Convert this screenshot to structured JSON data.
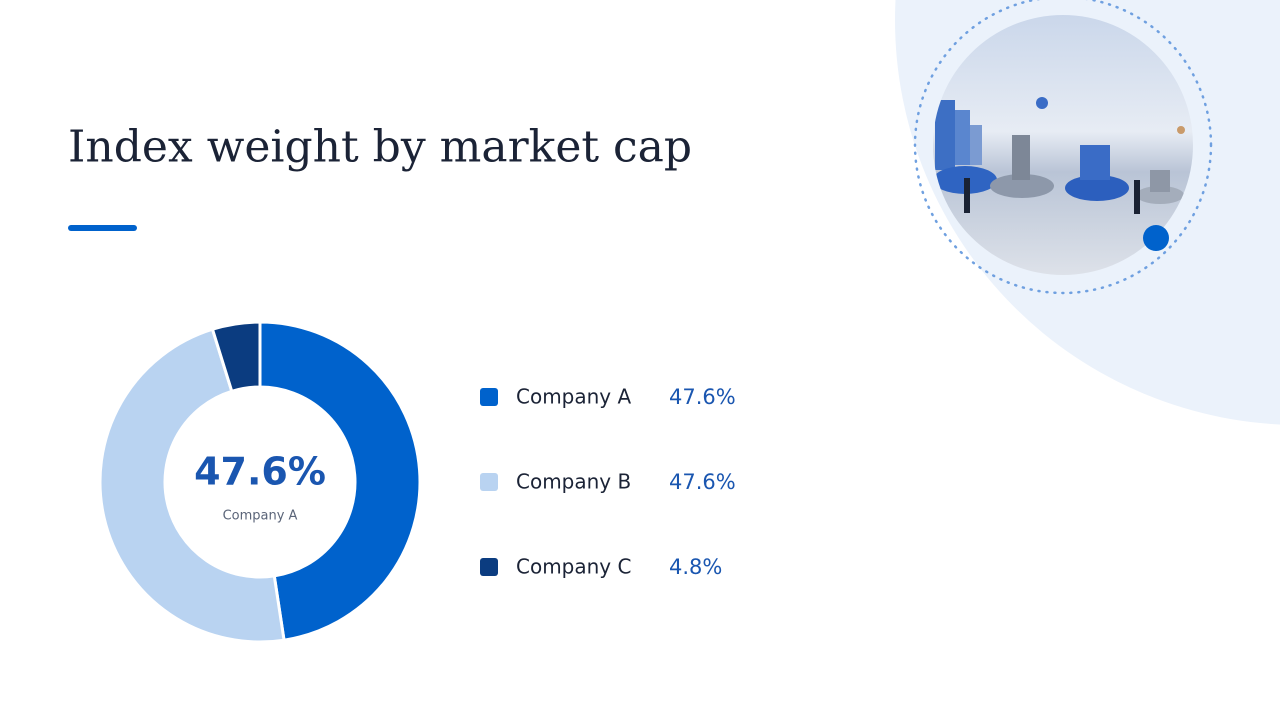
{
  "chart_data": {
    "type": "pie",
    "donut": true,
    "title": "Index weight by market cap",
    "categories": [
      "Company A",
      "Company B",
      "Company C"
    ],
    "values": [
      47.6,
      47.6,
      4.8
    ],
    "value_labels": [
      "47.6%",
      "47.6%",
      "4.8%"
    ],
    "colors": [
      "#0062cc",
      "#b9d3f1",
      "#0b3c80"
    ]
  }
}
